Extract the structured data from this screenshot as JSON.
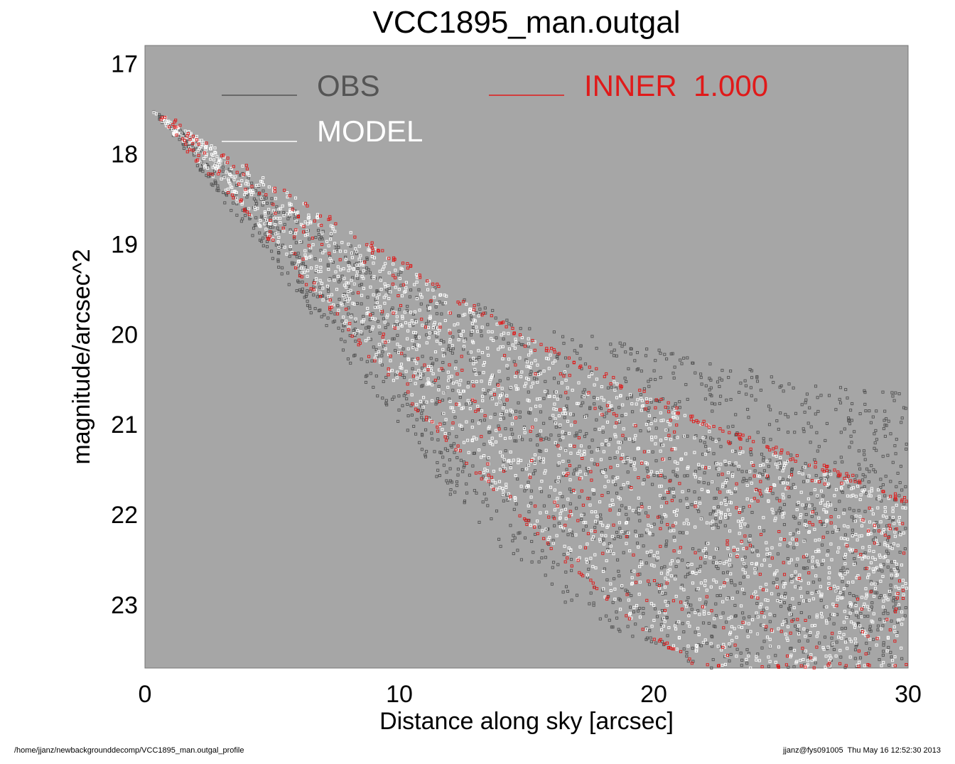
{
  "chart_data": {
    "type": "scatter",
    "title": "VCC1895_man.outgal",
    "xlabel": "Distance along sky [arcsec]",
    "ylabel": "magnitude/arcsec^2",
    "xlim": [
      0,
      30
    ],
    "ylim": [
      16.8,
      23.7
    ],
    "y_inverted": true,
    "grid": false,
    "legend_position": "top",
    "x_ticks": [
      "0",
      "10",
      "20",
      "30"
    ],
    "y_ticks": [
      "17",
      "18",
      "19",
      "20",
      "21",
      "22",
      "23"
    ],
    "plot_background": "#a6a6a6",
    "series": [
      {
        "name": "OBS",
        "color": "#555555",
        "x": [
          0.3,
          1,
          2,
          3,
          4,
          5,
          6,
          8,
          10,
          12,
          14,
          16,
          18,
          20,
          22,
          24,
          26,
          28,
          30
        ],
        "y_upper": [
          17.5,
          17.65,
          17.85,
          18.05,
          18.25,
          18.45,
          18.65,
          19.0,
          19.3,
          19.55,
          19.75,
          19.9,
          20.05,
          20.15,
          20.3,
          20.4,
          20.5,
          20.6,
          20.65
        ],
        "y_lower": [
          17.55,
          17.8,
          18.15,
          18.5,
          18.85,
          19.2,
          19.6,
          20.3,
          21.0,
          21.8,
          22.4,
          22.9,
          23.2,
          23.5,
          23.7,
          23.7,
          23.7,
          23.7,
          23.7
        ]
      },
      {
        "name": "MODEL",
        "color": "#ffffff",
        "x": [
          0.3,
          1,
          2,
          3,
          4,
          5,
          6,
          8,
          10,
          12,
          14,
          16,
          18,
          20,
          22,
          24,
          26,
          28,
          30
        ],
        "y_upper": [
          17.5,
          17.62,
          17.8,
          17.98,
          18.15,
          18.33,
          18.5,
          18.85,
          19.2,
          19.55,
          19.88,
          20.18,
          20.45,
          20.72,
          20.98,
          21.2,
          21.42,
          21.62,
          21.85
        ],
        "y_lower": [
          17.55,
          17.75,
          18.05,
          18.35,
          18.65,
          18.97,
          19.3,
          19.95,
          20.6,
          21.2,
          21.8,
          22.35,
          22.9,
          23.35,
          23.7,
          23.7,
          23.7,
          23.7,
          23.7
        ]
      },
      {
        "name": "INNER  1.000",
        "color": "#e01a1a",
        "x": [
          0.3,
          1,
          2,
          3,
          4,
          5,
          6,
          8,
          10,
          12,
          14,
          16,
          18,
          20,
          22,
          24,
          26,
          28,
          30
        ],
        "y_upper": [
          17.5,
          17.62,
          17.8,
          17.98,
          18.15,
          18.33,
          18.5,
          18.85,
          19.2,
          19.55,
          19.88,
          20.18,
          20.45,
          20.72,
          20.98,
          21.2,
          21.42,
          21.62,
          21.85
        ],
        "y_lower": [
          17.55,
          17.75,
          18.05,
          18.35,
          18.65,
          18.97,
          19.3,
          19.95,
          20.6,
          21.2,
          21.8,
          22.35,
          22.9,
          23.35,
          23.7,
          23.7,
          23.7,
          23.7,
          23.7
        ]
      }
    ]
  },
  "footer": {
    "left": "/home/jjanz/newbackgrounddecomp/VCC1895_man.outgal_profile",
    "right": "jjanz@fys091005  Thu May 16 12:52:30 2013"
  }
}
